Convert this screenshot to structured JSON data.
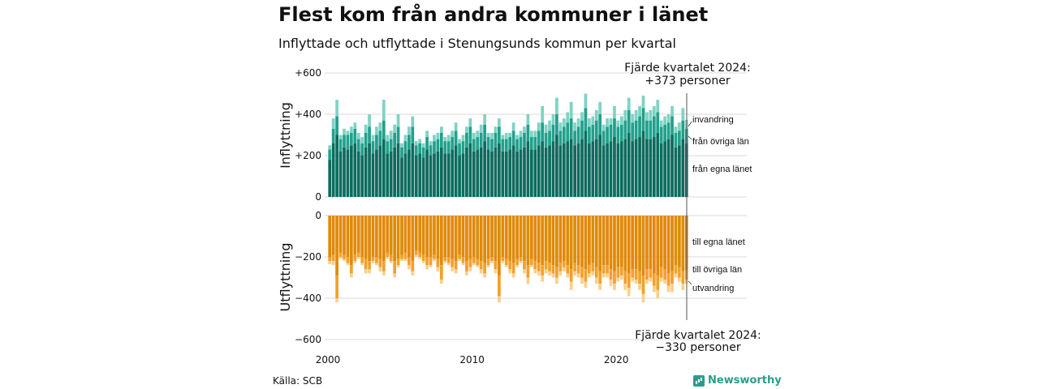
{
  "title": "Flest kom från andra kommuner i länet",
  "subtitle": "Inflyttade och utflyttade i Stenungsunds kommun per kvartal",
  "source": "Källa: SCB",
  "brand": {
    "name": "Newsworthy",
    "icon": "bar-chart-icon",
    "color": "#2a9d8f"
  },
  "chart_data": [
    {
      "type": "bar",
      "stacked": true,
      "ylabel": "Inflyttning",
      "ylim": [
        0,
        600
      ],
      "yticks": [
        "0",
        "+200",
        "+400",
        "+600"
      ],
      "grid": true,
      "colors": {
        "fran_egna_lanet": "#0e6b5e",
        "fran_ovriga_lan": "#22a08c",
        "invandring": "#7fd3c4"
      },
      "series_labels": [
        "invandring",
        "från övriga län",
        "från egna länet"
      ],
      "quarters": [
        "2000K1",
        "2000K2",
        "2000K3",
        "2000K4",
        "2001K1",
        "2001K2",
        "2001K3",
        "2001K4",
        "2002K1",
        "2002K2",
        "2002K3",
        "2002K4",
        "2003K1",
        "2003K2",
        "2003K3",
        "2003K4",
        "2004K1",
        "2004K2",
        "2004K3",
        "2004K4",
        "2005K1",
        "2005K2",
        "2005K3",
        "2005K4",
        "2006K1",
        "2006K2",
        "2006K3",
        "2006K4",
        "2007K1",
        "2007K2",
        "2007K3",
        "2007K4",
        "2008K1",
        "2008K2",
        "2008K3",
        "2008K4",
        "2009K1",
        "2009K2",
        "2009K3",
        "2009K4",
        "2010K1",
        "2010K2",
        "2010K3",
        "2010K4",
        "2011K1",
        "2011K2",
        "2011K3",
        "2011K4",
        "2012K1",
        "2012K2",
        "2012K3",
        "2012K4",
        "2013K1",
        "2013K2",
        "2013K3",
        "2013K4",
        "2014K1",
        "2014K2",
        "2014K3",
        "2014K4",
        "2015K1",
        "2015K2",
        "2015K3",
        "2015K4",
        "2016K1",
        "2016K2",
        "2016K3",
        "2016K4",
        "2017K1",
        "2017K2",
        "2017K3",
        "2017K4",
        "2018K1",
        "2018K2",
        "2018K3",
        "2018K4",
        "2019K1",
        "2019K2",
        "2019K3",
        "2019K4",
        "2020K1",
        "2020K2",
        "2020K3",
        "2020K4",
        "2021K1",
        "2021K2",
        "2021K3",
        "2021K4",
        "2022K1",
        "2022K2",
        "2022K3",
        "2022K4",
        "2023K1",
        "2023K2",
        "2023K3",
        "2023K4",
        "2024K1",
        "2024K2",
        "2024K3",
        "2024K4"
      ],
      "series": [
        {
          "key": "fran_egna_lanet",
          "values": [
            180,
            260,
            300,
            220,
            240,
            230,
            250,
            260,
            220,
            200,
            240,
            260,
            210,
            230,
            250,
            280,
            210,
            220,
            240,
            260,
            190,
            210,
            230,
            260,
            200,
            210,
            190,
            230,
            200,
            210,
            220,
            240,
            210,
            210,
            230,
            250,
            200,
            210,
            240,
            260,
            220,
            230,
            240,
            270,
            230,
            220,
            240,
            260,
            220,
            220,
            230,
            250,
            220,
            230,
            240,
            270,
            230,
            230,
            250,
            270,
            240,
            250,
            270,
            300,
            250,
            260,
            270,
            280,
            250,
            260,
            280,
            320,
            260,
            270,
            280,
            300,
            250,
            260,
            270,
            290,
            260,
            270,
            280,
            310,
            270,
            280,
            290,
            320,
            280,
            280,
            290,
            310,
            260,
            270,
            280,
            300,
            240,
            250,
            280,
            260
          ]
        },
        {
          "key": "fran_ovriga_lan",
          "values": [
            50,
            70,
            90,
            60,
            60,
            70,
            60,
            70,
            60,
            60,
            70,
            80,
            60,
            70,
            70,
            90,
            60,
            60,
            70,
            80,
            50,
            60,
            70,
            80,
            50,
            50,
            50,
            60,
            50,
            60,
            60,
            70,
            60,
            60,
            60,
            70,
            60,
            60,
            70,
            80,
            60,
            60,
            70,
            80,
            60,
            60,
            70,
            80,
            60,
            60,
            60,
            70,
            60,
            60,
            70,
            80,
            60,
            60,
            70,
            90,
            70,
            70,
            80,
            100,
            70,
            80,
            90,
            100,
            70,
            80,
            90,
            110,
            80,
            80,
            90,
            100,
            70,
            80,
            80,
            90,
            80,
            80,
            90,
            110,
            90,
            90,
            100,
            110,
            90,
            90,
            100,
            100,
            80,
            80,
            80,
            90,
            70,
            70,
            90,
            70
          ]
        },
        {
          "key": "invandring",
          "values": [
            20,
            50,
            80,
            20,
            30,
            20,
            30,
            30,
            30,
            30,
            40,
            60,
            30,
            40,
            40,
            100,
            30,
            40,
            40,
            60,
            20,
            30,
            40,
            50,
            20,
            20,
            20,
            30,
            20,
            30,
            30,
            30,
            20,
            30,
            30,
            40,
            20,
            30,
            30,
            40,
            30,
            30,
            40,
            50,
            20,
            30,
            30,
            40,
            20,
            30,
            20,
            40,
            20,
            30,
            30,
            50,
            30,
            30,
            40,
            80,
            40,
            50,
            50,
            80,
            40,
            40,
            50,
            80,
            40,
            40,
            40,
            70,
            40,
            40,
            50,
            60,
            30,
            40,
            30,
            60,
            30,
            40,
            50,
            60,
            40,
            50,
            50,
            60,
            40,
            50,
            50,
            60,
            30,
            40,
            40,
            50,
            30,
            40,
            60,
            43
          ]
        }
      ],
      "annotation": {
        "line1": "Fjärde kvartalet 2024:",
        "line2": "+373 personer"
      }
    },
    {
      "type": "bar",
      "stacked": true,
      "ylabel": "Utflyttning",
      "ylim": [
        -600,
        0
      ],
      "yticks": [
        "0",
        "−200",
        "−400",
        "−600"
      ],
      "grid": true,
      "colors": {
        "till_egna_lanet": "#e08a0b",
        "till_ovriga_lan": "#f3a02e",
        "utvandring": "#fbd08a"
      },
      "series_labels": [
        "till egna länet",
        "till övriga län",
        "utvandring"
      ],
      "series": [
        {
          "key": "till_egna_lanet",
          "values": [
            -200,
            -190,
            -290,
            -180,
            -190,
            -200,
            -240,
            -190,
            -180,
            -200,
            -210,
            -220,
            -200,
            -200,
            -210,
            -220,
            -180,
            -190,
            -220,
            -210,
            -190,
            -180,
            -200,
            -220,
            -170,
            -180,
            -190,
            -200,
            -200,
            -190,
            -210,
            -240,
            -200,
            -200,
            -210,
            -220,
            -190,
            -200,
            -220,
            -210,
            -200,
            -210,
            -220,
            -230,
            -210,
            -200,
            -220,
            -290,
            -200,
            -210,
            -220,
            -230,
            -210,
            -200,
            -220,
            -240,
            -210,
            -220,
            -230,
            -240,
            -220,
            -230,
            -240,
            -250,
            -230,
            -220,
            -240,
            -260,
            -230,
            -240,
            -250,
            -260,
            -240,
            -230,
            -250,
            -270,
            -240,
            -240,
            -260,
            -270,
            -250,
            -250,
            -270,
            -280,
            -260,
            -260,
            -270,
            -290,
            -260,
            -260,
            -280,
            -290,
            -250,
            -260,
            -280,
            -270,
            -240,
            -250,
            -270,
            -265
          ]
        },
        {
          "key": "till_ovriga_lan",
          "values": [
            -20,
            -30,
            -110,
            -20,
            -20,
            -30,
            -40,
            -30,
            -20,
            -30,
            -50,
            -40,
            -20,
            -30,
            -40,
            -50,
            -20,
            -30,
            -60,
            -30,
            -20,
            -30,
            -40,
            -50,
            -20,
            -20,
            -30,
            -40,
            -40,
            -20,
            -40,
            -70,
            -20,
            -30,
            -40,
            -40,
            -20,
            -30,
            -50,
            -40,
            -30,
            -30,
            -40,
            -50,
            -30,
            -20,
            -40,
            -100,
            -20,
            -30,
            -40,
            -50,
            -30,
            -20,
            -40,
            -60,
            -30,
            -40,
            -40,
            -50,
            -40,
            -40,
            -40,
            -50,
            -40,
            -30,
            -40,
            -60,
            -40,
            -40,
            -50,
            -60,
            -40,
            -40,
            -50,
            -60,
            -40,
            -40,
            -50,
            -60,
            -50,
            -40,
            -60,
            -70,
            -40,
            -50,
            -60,
            -90,
            -50,
            -40,
            -60,
            -70,
            -50,
            -50,
            -60,
            -60,
            -40,
            -50,
            -60,
            -45
          ]
        },
        {
          "key": "utvandring",
          "values": [
            -15,
            -20,
            -20,
            -10,
            -10,
            -10,
            -20,
            -10,
            -10,
            -10,
            -20,
            -20,
            -10,
            -10,
            -20,
            -20,
            -10,
            -10,
            -20,
            -10,
            -10,
            -10,
            -20,
            -20,
            -10,
            -10,
            -10,
            -20,
            -10,
            -10,
            -20,
            -20,
            -10,
            -10,
            -20,
            -20,
            -10,
            -10,
            -20,
            -20,
            -10,
            -10,
            -20,
            -20,
            -10,
            -10,
            -20,
            -30,
            -10,
            -10,
            -20,
            -20,
            -10,
            -10,
            -20,
            -30,
            -10,
            -20,
            -20,
            -30,
            -20,
            -20,
            -20,
            -30,
            -20,
            -20,
            -20,
            -40,
            -20,
            -20,
            -30,
            -30,
            -20,
            -20,
            -30,
            -30,
            -20,
            -20,
            -30,
            -30,
            -20,
            -20,
            -30,
            -40,
            -20,
            -20,
            -30,
            -40,
            -20,
            -20,
            -30,
            -40,
            -20,
            -20,
            -30,
            -40,
            -20,
            -20,
            -30,
            -20
          ]
        }
      ],
      "annotation": {
        "line1": "Fjärde kvartalet 2024:",
        "line2": "−330 personer"
      }
    }
  ],
  "x_ticks": [
    {
      "label": "2000",
      "year": 2000
    },
    {
      "label": "2010",
      "year": 2010
    },
    {
      "label": "2020",
      "year": 2020
    }
  ]
}
